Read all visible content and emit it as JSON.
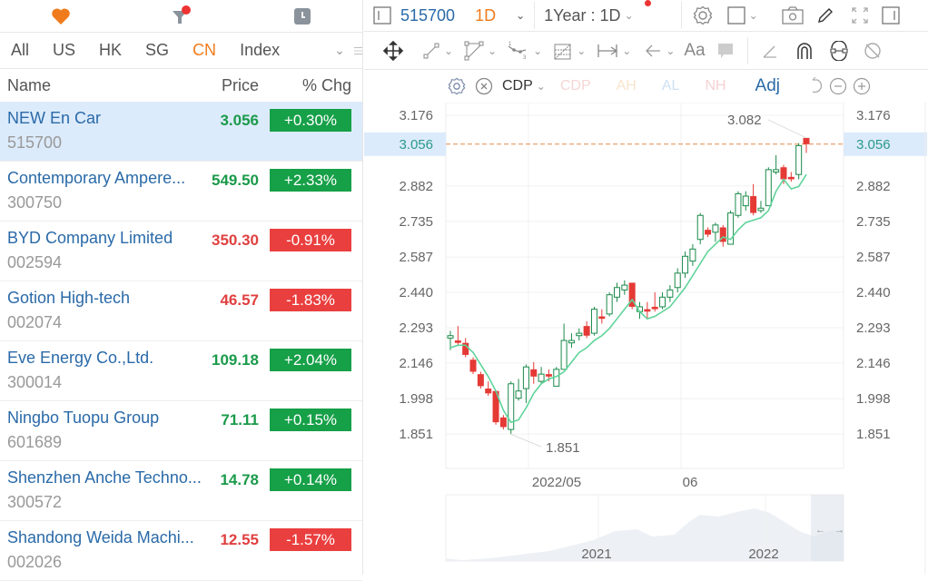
{
  "left": {
    "top_icons": [
      {
        "name": "heart-icon",
        "color": "#f07b1c"
      },
      {
        "name": "filter-icon",
        "color": "#8a939c",
        "badge_color": "#e33"
      },
      {
        "name": "clock-icon",
        "color": "#8a939c"
      }
    ],
    "market_tabs": [
      {
        "label": "All",
        "active": false
      },
      {
        "label": "US",
        "active": false
      },
      {
        "label": "HK",
        "active": false
      },
      {
        "label": "SG",
        "active": false
      },
      {
        "label": "CN",
        "active": true
      },
      {
        "label": "Index",
        "active": false
      }
    ],
    "columns": {
      "name": "Name",
      "price": "Price",
      "chg": "% Chg"
    },
    "rows": [
      {
        "name": "NEW En Car",
        "code": "515700",
        "price": "3.056",
        "chg": "+0.30%",
        "dir": "up",
        "selected": true
      },
      {
        "name": "Contemporary Ampere...",
        "code": "300750",
        "price": "549.50",
        "chg": "+2.33%",
        "dir": "up"
      },
      {
        "name": "BYD Company Limited",
        "code": "002594",
        "price": "350.30",
        "chg": "-0.91%",
        "dir": "down"
      },
      {
        "name": "Gotion High-tech",
        "code": "002074",
        "price": "46.57",
        "chg": "-1.83%",
        "dir": "down"
      },
      {
        "name": "Eve Energy Co.,Ltd.",
        "code": "300014",
        "price": "109.18",
        "chg": "+2.04%",
        "dir": "up"
      },
      {
        "name": "Ningbo Tuopu Group",
        "code": "601689",
        "price": "71.11",
        "chg": "+0.15%",
        "dir": "up"
      },
      {
        "name": "Shenzhen Anche Techno...",
        "code": "300572",
        "price": "14.78",
        "chg": "+0.14%",
        "dir": "up"
      },
      {
        "name": "Shandong Weida Machi...",
        "code": "002026",
        "price": "12.55",
        "chg": "-1.57%",
        "dir": "down"
      }
    ]
  },
  "chart_header": {
    "symbol": "515700",
    "interval": "1D",
    "range": "1Year : 1D",
    "indicator_select": "CDP",
    "indicators_faded": [
      {
        "label": "CDP",
        "color": "#f5d6d6"
      },
      {
        "label": "AH",
        "color": "#f8e4cc"
      },
      {
        "label": "AL",
        "color": "#cfe1f3"
      },
      {
        "label": "NH",
        "color": "#f5d2d2"
      }
    ],
    "adj_label": "Adj"
  },
  "chart_data": {
    "type": "candlestick",
    "title": "515700 NEW En Car 1D",
    "y_ticks": [
      "3.176",
      "2.882",
      "2.735",
      "2.587",
      "2.440",
      "2.293",
      "2.146",
      "1.998",
      "1.851"
    ],
    "current_price": "3.056",
    "high_annotation": "3.082",
    "low_annotation": "1.851",
    "x_ticks": [
      "2022/05",
      "06"
    ],
    "navigator_labels": [
      "2021",
      "2022"
    ],
    "candles": [
      [
        2.25,
        2.26,
        2.28,
        2.2
      ],
      [
        2.24,
        2.23,
        2.3,
        2.22
      ],
      [
        2.23,
        2.18,
        2.25,
        2.17
      ],
      [
        2.16,
        2.11,
        2.17,
        2.1
      ],
      [
        2.1,
        2.05,
        2.11,
        2.04
      ],
      [
        2.04,
        2.02,
        2.07,
        2.01
      ],
      [
        2.03,
        1.9,
        2.03,
        1.89
      ],
      [
        1.92,
        1.88,
        1.93,
        1.87
      ],
      [
        1.87,
        2.06,
        2.07,
        1.85
      ],
      [
        2.0,
        2.03,
        2.08,
        1.99
      ],
      [
        2.04,
        2.13,
        2.14,
        1.98
      ],
      [
        2.12,
        2.09,
        2.15,
        2.06
      ],
      [
        2.07,
        2.1,
        2.13,
        2.06
      ],
      [
        2.1,
        2.09,
        2.12,
        2.07
      ],
      [
        2.05,
        2.12,
        2.13,
        2.05
      ],
      [
        2.12,
        2.24,
        2.31,
        2.12
      ],
      [
        2.23,
        2.24,
        2.27,
        2.21
      ],
      [
        2.26,
        2.27,
        2.29,
        2.24
      ],
      [
        2.3,
        2.26,
        2.32,
        2.25
      ],
      [
        2.27,
        2.37,
        2.38,
        2.26
      ],
      [
        2.34,
        2.33,
        2.37,
        2.31
      ],
      [
        2.35,
        2.43,
        2.44,
        2.34
      ],
      [
        2.42,
        2.46,
        2.48,
        2.4
      ],
      [
        2.45,
        2.47,
        2.49,
        2.43
      ],
      [
        2.48,
        2.38,
        2.48,
        2.37
      ],
      [
        2.36,
        2.38,
        2.4,
        2.33
      ],
      [
        2.37,
        2.36,
        2.4,
        2.33
      ],
      [
        2.38,
        2.37,
        2.44,
        2.36
      ],
      [
        2.38,
        2.42,
        2.44,
        2.37
      ],
      [
        2.42,
        2.45,
        2.47,
        2.4
      ],
      [
        2.46,
        2.52,
        2.54,
        2.44
      ],
      [
        2.52,
        2.59,
        2.61,
        2.5
      ],
      [
        2.57,
        2.62,
        2.64,
        2.55
      ],
      [
        2.66,
        2.76,
        2.77,
        2.64
      ],
      [
        2.7,
        2.68,
        2.71,
        2.67
      ],
      [
        2.69,
        2.72,
        2.73,
        2.65
      ],
      [
        2.71,
        2.65,
        2.72,
        2.63
      ],
      [
        2.64,
        2.77,
        2.78,
        2.64
      ],
      [
        2.76,
        2.85,
        2.86,
        2.75
      ],
      [
        2.8,
        2.84,
        2.86,
        2.78
      ],
      [
        2.84,
        2.77,
        2.89,
        2.76
      ],
      [
        2.78,
        2.79,
        2.82,
        2.77
      ],
      [
        2.8,
        2.95,
        2.96,
        2.8
      ],
      [
        2.94,
        2.95,
        3.01,
        2.93
      ],
      [
        2.96,
        2.91,
        2.97,
        2.89
      ],
      [
        2.92,
        2.91,
        2.94,
        2.9
      ],
      [
        2.93,
        3.05,
        3.06,
        2.91
      ],
      [
        3.082,
        3.056,
        3.082,
        3.02
      ]
    ],
    "candle_format": [
      "open",
      "close",
      "high",
      "low"
    ],
    "up_color": "#1a8a4a",
    "down_color": "#e53935",
    "ma_color": "#5fd49a",
    "ma": [
      2.21,
      2.22,
      2.22,
      2.19,
      2.14,
      2.09,
      2.03,
      1.95,
      1.9,
      1.91,
      1.96,
      2.02,
      2.06,
      2.08,
      2.09,
      2.11,
      2.15,
      2.19,
      2.21,
      2.24,
      2.26,
      2.29,
      2.33,
      2.37,
      2.41,
      2.36,
      2.33,
      2.34,
      2.36,
      2.38,
      2.42,
      2.46,
      2.51,
      2.56,
      2.61,
      2.64,
      2.67,
      2.66,
      2.7,
      2.73,
      2.74,
      2.75,
      2.78,
      2.86,
      2.91,
      2.87,
      2.88,
      2.93
    ]
  },
  "colors": {
    "accent": "#f07b1c",
    "link": "#2a6aa8",
    "up": "#16a048",
    "down": "#ea3f3f",
    "selected_row": "#dcebfb"
  }
}
